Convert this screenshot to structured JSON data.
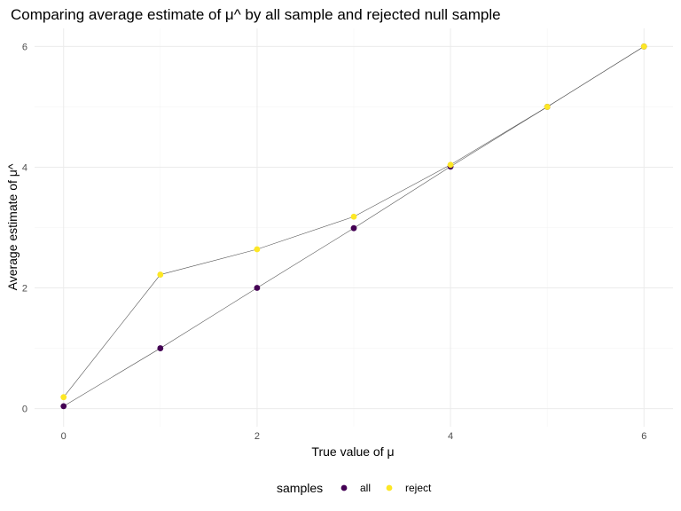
{
  "chart_data": {
    "type": "line",
    "title": "Comparing average estimate of μ^ by all sample and rejected null sample",
    "xlabel": "True value of μ",
    "ylabel": "Average estimate of μ^",
    "xlim": [
      -0.3,
      6.3
    ],
    "ylim": [
      -0.3,
      6.3
    ],
    "x_ticks": [
      0,
      2,
      4,
      6
    ],
    "y_ticks": [
      0,
      2,
      4,
      6
    ],
    "x_minor": [
      1,
      3,
      5
    ],
    "y_minor": [
      1,
      3,
      5
    ],
    "grid": true,
    "legend": {
      "title": "samples",
      "position": "bottom"
    },
    "series": [
      {
        "name": "all",
        "color": "#440154",
        "x": [
          0,
          1,
          2,
          3,
          4,
          5,
          6
        ],
        "values": [
          0.04,
          1.0,
          2.0,
          2.99,
          4.01,
          5.0,
          6.0
        ]
      },
      {
        "name": "reject",
        "color": "#FDE725",
        "x": [
          0,
          1,
          2,
          3,
          4,
          5,
          6
        ],
        "values": [
          0.19,
          2.22,
          2.64,
          3.18,
          4.04,
          5.0,
          6.0
        ]
      }
    ]
  }
}
